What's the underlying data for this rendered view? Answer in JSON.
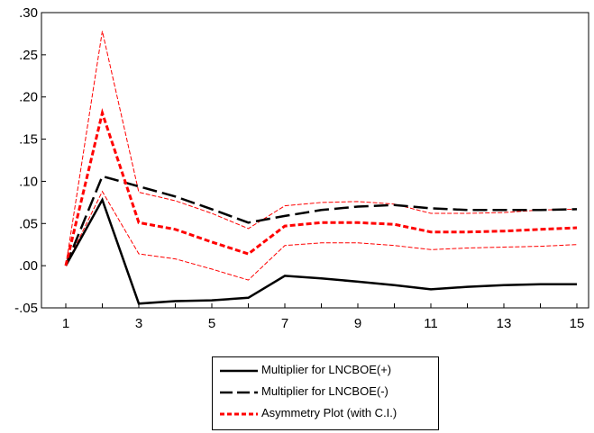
{
  "chart_data": {
    "type": "line",
    "x": [
      1,
      2,
      3,
      4,
      5,
      6,
      7,
      8,
      9,
      10,
      11,
      12,
      13,
      14,
      15
    ],
    "xticks": [
      "1",
      "3",
      "5",
      "7",
      "9",
      "11",
      "13",
      "15"
    ],
    "yticks": [
      ".30",
      ".25",
      ".20",
      ".15",
      ".10",
      ".05",
      ".00",
      "-.05"
    ],
    "ylim": [
      -0.05,
      0.3
    ],
    "xlim": [
      1,
      15
    ],
    "grid": "none",
    "legend_position": "bottom-center",
    "series": [
      {
        "name": "Multiplier for LNCBOE(+)",
        "style": "solid",
        "color": "#000000",
        "values": [
          0.0,
          0.078,
          -0.045,
          -0.042,
          -0.041,
          -0.038,
          -0.012,
          -0.015,
          -0.019,
          -0.023,
          -0.028,
          -0.025,
          -0.023,
          -0.022,
          -0.022
        ]
      },
      {
        "name": "Multiplier for LNCBOE(-)",
        "style": "longdash",
        "color": "#000000",
        "values": [
          0.0,
          0.106,
          0.094,
          0.082,
          0.067,
          0.051,
          0.059,
          0.066,
          0.07,
          0.072,
          0.068,
          0.066,
          0.066,
          0.066,
          0.067
        ]
      },
      {
        "name": "Asymmetry Plot (with C.I.)",
        "style": "dash",
        "color": "#ff0000",
        "values": [
          0.0,
          0.181,
          0.051,
          0.043,
          0.028,
          0.014,
          0.047,
          0.051,
          0.051,
          0.049,
          0.04,
          0.04,
          0.041,
          0.043,
          0.045
        ]
      }
    ],
    "confidence_band": {
      "color": "#ff0000",
      "style": "thin-dash",
      "upper": [
        0.0,
        0.278,
        0.087,
        0.077,
        0.062,
        0.044,
        0.071,
        0.075,
        0.076,
        0.073,
        0.062,
        0.062,
        0.063,
        0.066,
        0.067
      ],
      "lower": [
        0.0,
        0.088,
        0.014,
        0.008,
        -0.004,
        -0.017,
        0.024,
        0.027,
        0.027,
        0.024,
        0.019,
        0.021,
        0.022,
        0.023,
        0.025
      ]
    }
  },
  "legend": {
    "items": [
      {
        "label": "Multiplier for LNCBOE(+)"
      },
      {
        "label": "Multiplier for LNCBOE(-)"
      },
      {
        "label": "Asymmetry Plot (with C.I.)"
      }
    ]
  }
}
